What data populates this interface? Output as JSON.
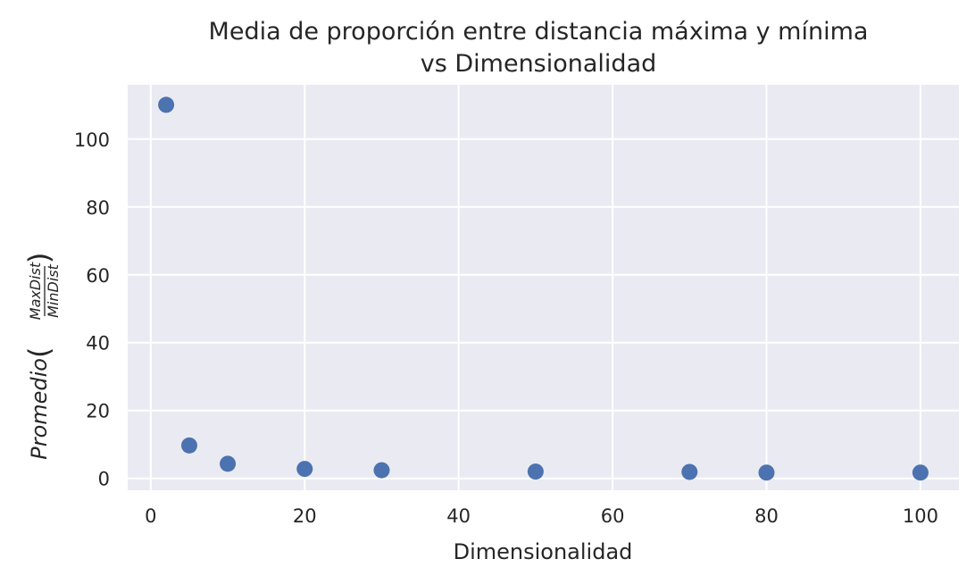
{
  "chart_data": {
    "type": "scatter",
    "title_line1": "Media de proporción entre distancia máxima y mínima",
    "title_line2": "vs Dimensionalidad",
    "xlabel": "Dimensionalidad",
    "ylabel_prefix": "Promedio",
    "ylabel_numerator": "MaxDist",
    "ylabel_denominator": "MinDist",
    "xlim": [
      -3,
      105
    ],
    "ylim": [
      -3.5,
      116
    ],
    "xticks": [
      0,
      20,
      40,
      60,
      80,
      100
    ],
    "yticks": [
      0,
      20,
      40,
      60,
      80,
      100
    ],
    "grid": true,
    "point_color": "#4c72b0",
    "background_color": "#eaeaf2",
    "x": [
      2,
      5,
      10,
      20,
      30,
      50,
      70,
      80,
      100
    ],
    "y": [
      110.1,
      9.7,
      4.3,
      2.8,
      2.4,
      2.0,
      1.9,
      1.7,
      1.7
    ]
  }
}
